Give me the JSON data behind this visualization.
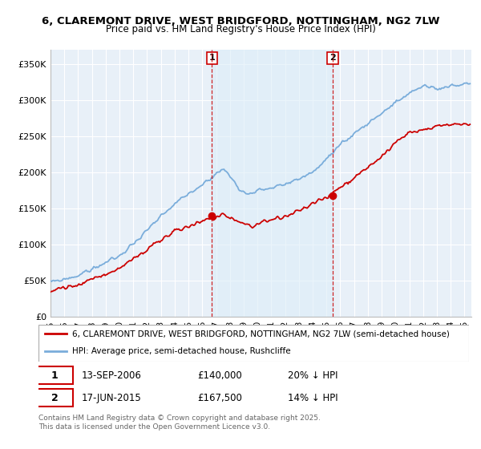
{
  "title1": "6, CLAREMONT DRIVE, WEST BRIDGFORD, NOTTINGHAM, NG2 7LW",
  "title2": "Price paid vs. HM Land Registry's House Price Index (HPI)",
  "ylabel_ticks": [
    "£0",
    "£50K",
    "£100K",
    "£150K",
    "£200K",
    "£250K",
    "£300K",
    "£350K"
  ],
  "ytick_vals": [
    0,
    50000,
    100000,
    150000,
    200000,
    250000,
    300000,
    350000
  ],
  "ylim": [
    0,
    370000
  ],
  "xlim_start": 1995.0,
  "xlim_end": 2025.5,
  "purchase1": {
    "date_num": 2006.7,
    "price": 140000,
    "label": "1"
  },
  "purchase2": {
    "date_num": 2015.45,
    "price": 167500,
    "label": "2"
  },
  "legend_red": "6, CLAREMONT DRIVE, WEST BRIDGFORD, NOTTINGHAM, NG2 7LW (semi-detached house)",
  "legend_blue": "HPI: Average price, semi-detached house, Rushcliffe",
  "table_row1": [
    "1",
    "13-SEP-2006",
    "£140,000",
    "20% ↓ HPI"
  ],
  "table_row2": [
    "2",
    "17-JUN-2015",
    "£167,500",
    "14% ↓ HPI"
  ],
  "footnote": "Contains HM Land Registry data © Crown copyright and database right 2025.\nThis data is licensed under the Open Government Licence v3.0.",
  "red_color": "#cc0000",
  "blue_color": "#7aaddb",
  "blue_fill": "#ddeef8",
  "dashed_color": "#cc0000",
  "bg_plot": "#e8f0f8",
  "grid_color": "#ffffff"
}
